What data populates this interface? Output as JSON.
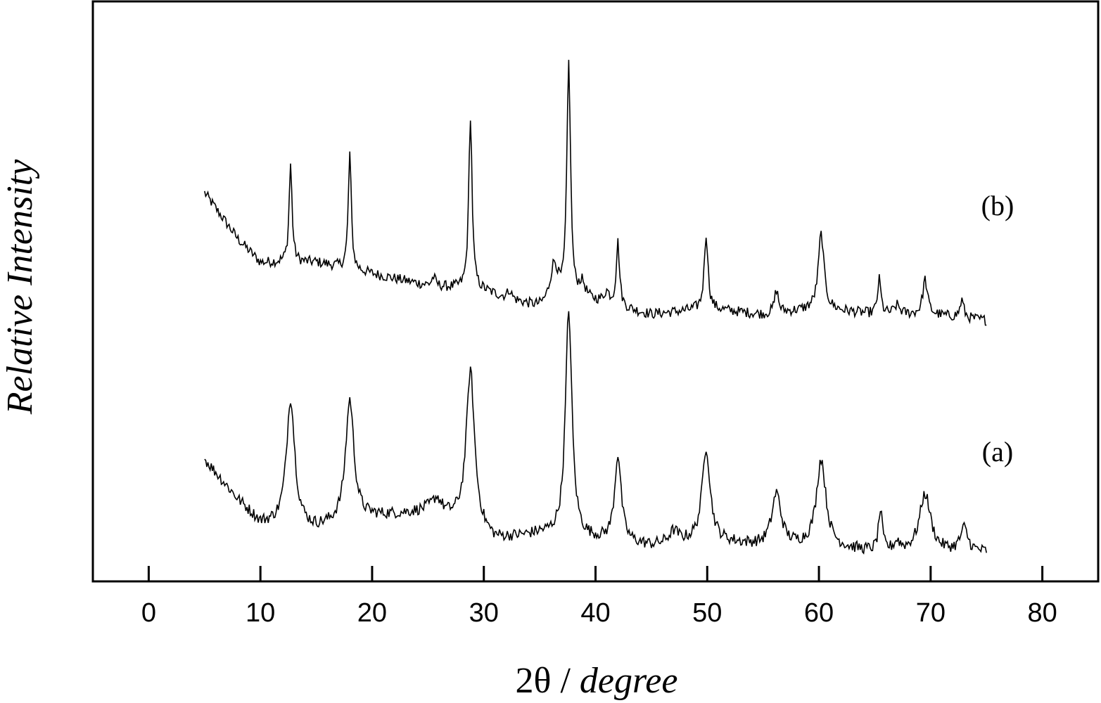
{
  "chart_data": {
    "type": "line",
    "title": "",
    "xlabel_prefix": "2θ / ",
    "xlabel_italic": "degree",
    "ylabel": "Relative Intensity",
    "xlim": [
      -5,
      85
    ],
    "x_ticks": [
      0,
      10,
      20,
      30,
      40,
      50,
      60,
      70,
      80
    ],
    "x_tick_labels": [
      "0",
      "10",
      "20",
      "30",
      "40",
      "50",
      "60",
      "70",
      "80"
    ],
    "y_ticks_shown": false,
    "ylim": [
      0,
      100
    ],
    "x_range": [
      5,
      75
    ],
    "step": 0.1,
    "series": [
      {
        "label": "(b)",
        "baseline": [
          [
            5,
            67
          ],
          [
            8,
            59
          ],
          [
            10,
            55
          ],
          [
            15,
            55
          ],
          [
            20,
            53
          ],
          [
            25,
            51
          ],
          [
            30,
            50
          ],
          [
            35,
            47
          ],
          [
            40,
            48
          ],
          [
            45,
            46
          ],
          [
            50,
            47
          ],
          [
            55,
            46
          ],
          [
            60,
            47
          ],
          [
            65,
            46
          ],
          [
            70,
            46
          ],
          [
            75,
            45
          ]
        ],
        "peaks": [
          [
            12.7,
            17,
            0.16
          ],
          [
            18.0,
            20,
            0.16
          ],
          [
            25.5,
            1.5,
            0.2
          ],
          [
            28.8,
            30,
            0.18
          ],
          [
            32.3,
            1.5,
            0.2
          ],
          [
            36.3,
            7,
            0.45
          ],
          [
            37.6,
            41,
            0.2
          ],
          [
            38.8,
            3,
            0.4
          ],
          [
            41.0,
            2,
            0.3
          ],
          [
            42.0,
            11,
            0.18
          ],
          [
            49.9,
            13,
            0.2
          ],
          [
            56.2,
            4,
            0.2
          ],
          [
            60.2,
            13,
            0.3
          ],
          [
            65.4,
            6,
            0.18
          ],
          [
            67.0,
            1.5,
            0.3
          ],
          [
            69.5,
            6,
            0.25
          ],
          [
            72.8,
            3,
            0.2
          ]
        ],
        "noise": 0.9
      },
      {
        "label": "(a)",
        "baseline": [
          [
            5,
            21
          ],
          [
            8,
            14
          ],
          [
            10,
            10
          ],
          [
            15,
            9
          ],
          [
            20,
            11
          ],
          [
            25,
            12
          ],
          [
            28,
            10
          ],
          [
            31,
            7
          ],
          [
            35,
            8
          ],
          [
            40,
            7
          ],
          [
            45,
            6
          ],
          [
            50,
            7
          ],
          [
            55,
            6
          ],
          [
            60,
            6
          ],
          [
            65,
            5
          ],
          [
            70,
            5
          ],
          [
            75,
            5
          ]
        ],
        "peaks": [
          [
            12.7,
            22,
            0.45
          ],
          [
            18.0,
            21,
            0.45
          ],
          [
            25.8,
            2.5,
            0.5
          ],
          [
            28.8,
            27,
            0.45
          ],
          [
            37.6,
            39,
            0.35
          ],
          [
            42.0,
            15,
            0.35
          ],
          [
            47.0,
            2,
            0.5
          ],
          [
            49.9,
            16,
            0.42
          ],
          [
            56.2,
            9,
            0.5
          ],
          [
            60.2,
            15,
            0.5
          ],
          [
            65.5,
            7,
            0.2
          ],
          [
            67.0,
            1.5,
            0.3
          ],
          [
            69.5,
            10,
            0.6
          ],
          [
            73.0,
            4,
            0.4
          ]
        ],
        "noise": 1.0
      }
    ]
  }
}
